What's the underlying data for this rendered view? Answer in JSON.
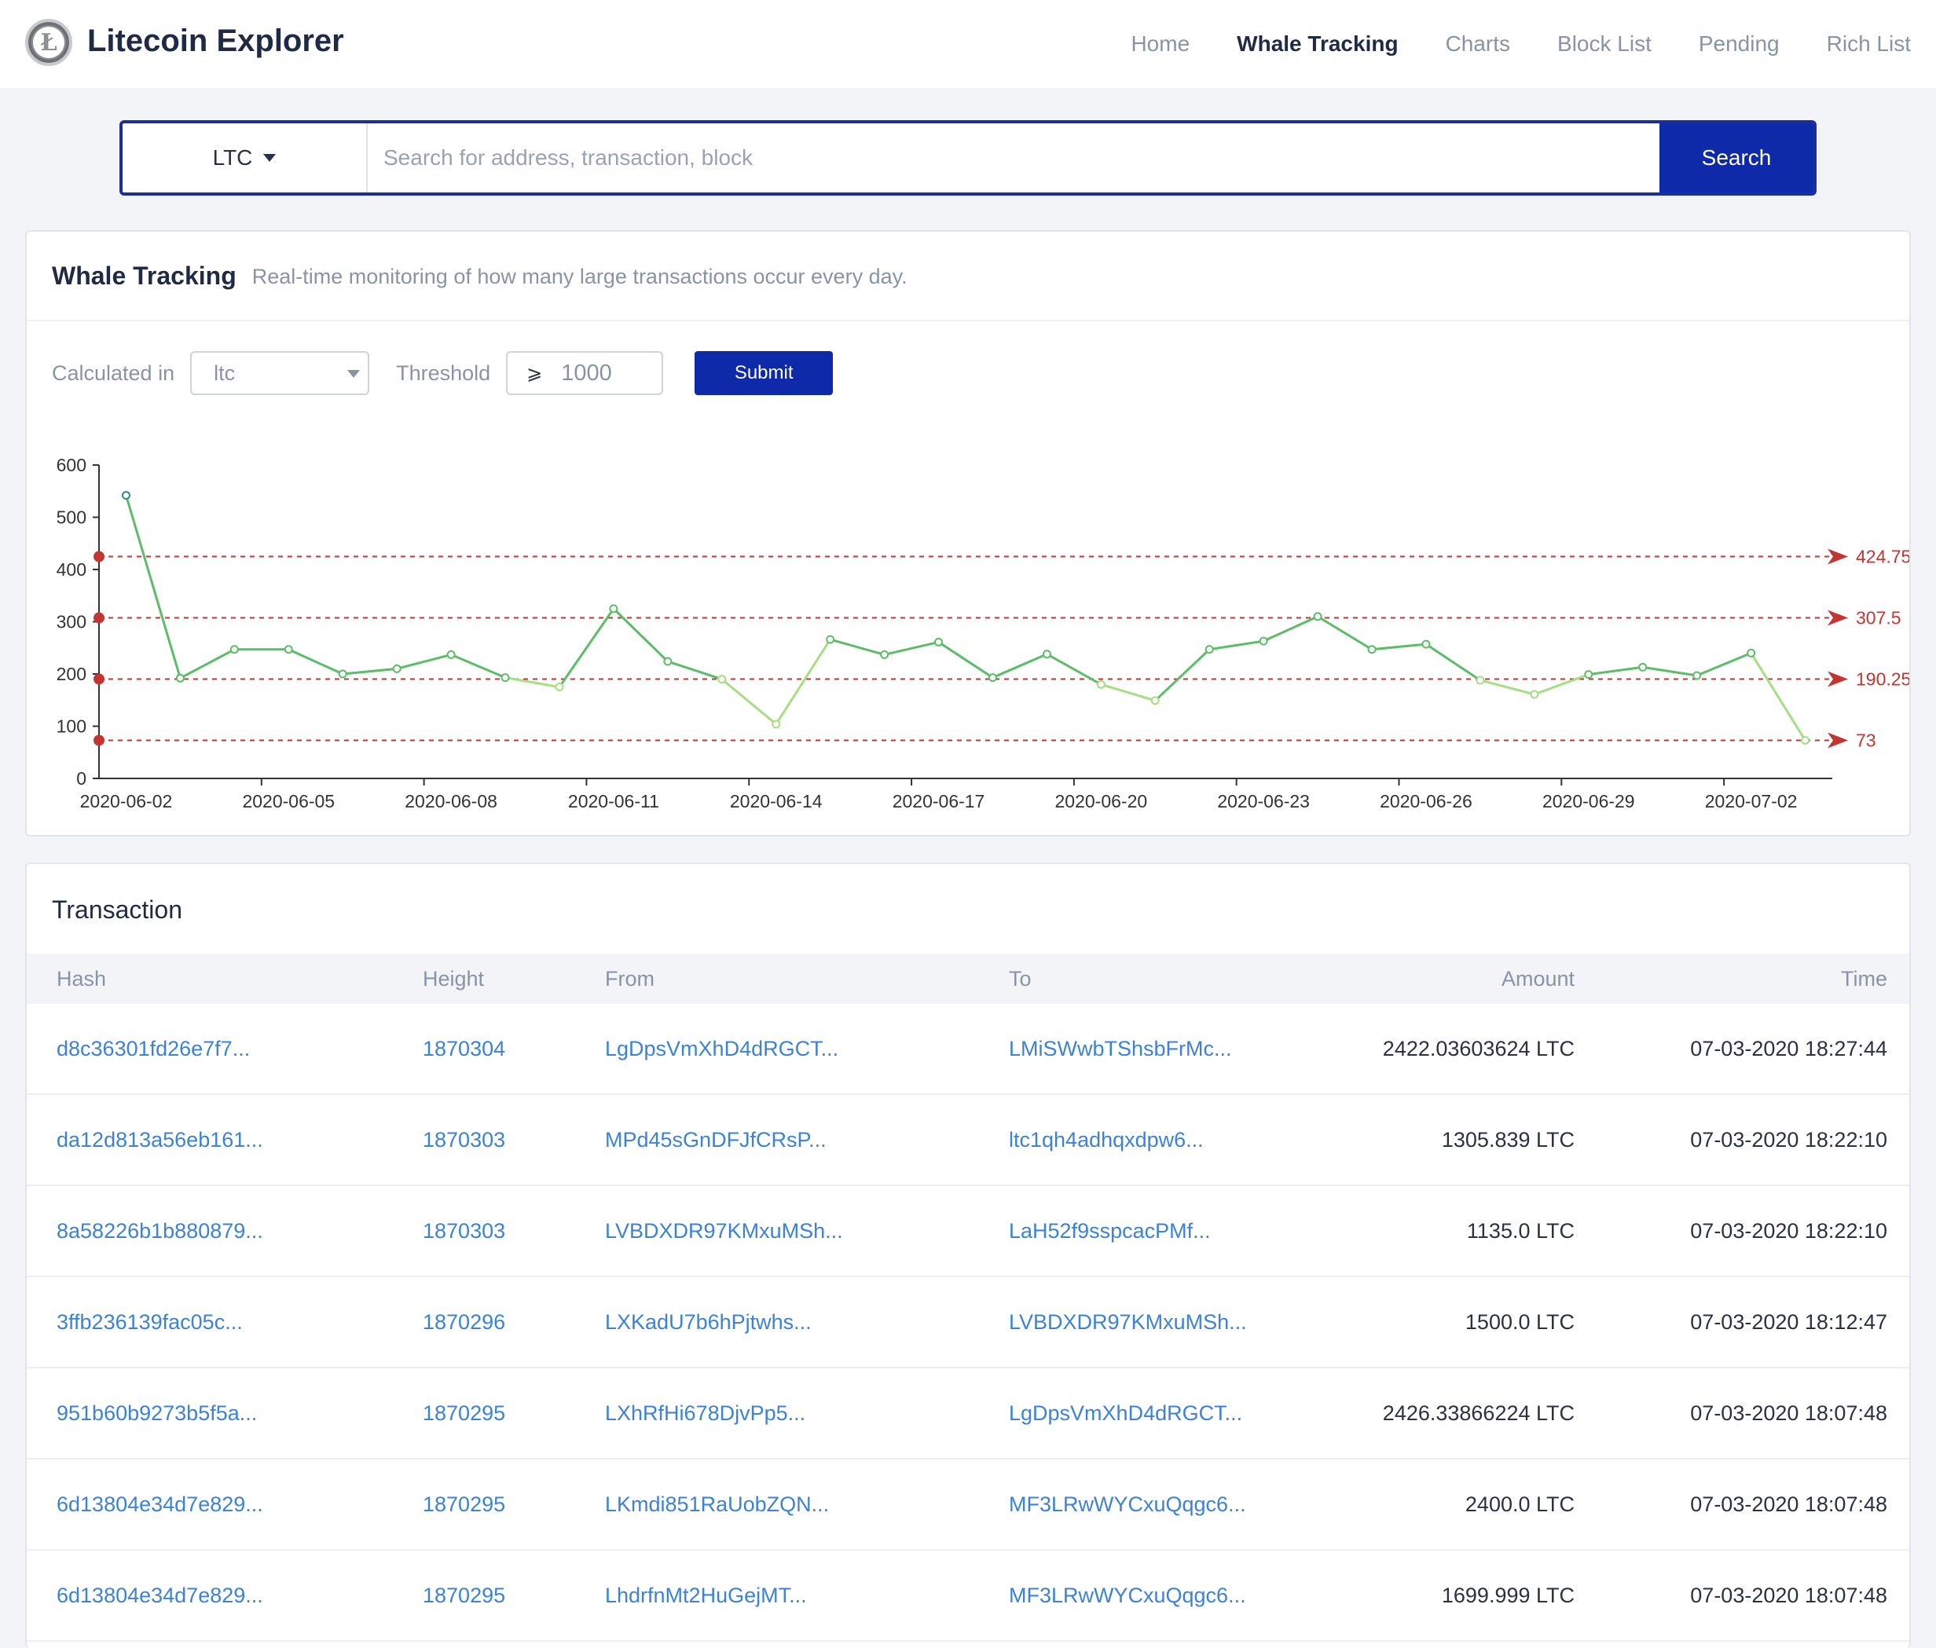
{
  "header": {
    "brand": "Litecoin Explorer",
    "logo_icon": "litecoin-logo",
    "logo_glyph": "Ł",
    "nav": [
      "Home",
      "Whale Tracking",
      "Charts",
      "Block List",
      "Pending",
      "Rich List"
    ],
    "active_nav": "Whale Tracking"
  },
  "search": {
    "currency": "LTC",
    "placeholder": "Search for address, transaction, block",
    "button": "Search"
  },
  "whale": {
    "title": "Whale Tracking",
    "subtitle": "Real-time monitoring of how many large transactions occur every day.",
    "calc_label": "Calculated in",
    "calc_value": "ltc",
    "threshold_label": "Threshold",
    "threshold_symbol": "⩾",
    "threshold_value": "1000",
    "submit": "Submit"
  },
  "chart_data": {
    "type": "line",
    "ylim": [
      0,
      600
    ],
    "yticks": [
      "0",
      "100",
      "200",
      "300",
      "400",
      "500",
      "600"
    ],
    "xtick_labels": [
      "2020-06-02",
      "2020-06-05",
      "2020-06-08",
      "2020-06-11",
      "2020-06-14",
      "2020-06-17",
      "2020-06-20",
      "2020-06-23",
      "2020-06-26",
      "2020-06-29",
      "2020-07-02"
    ],
    "x": [
      "2020-06-02",
      "2020-06-03",
      "2020-06-04",
      "2020-06-05",
      "2020-06-06",
      "2020-06-07",
      "2020-06-08",
      "2020-06-09",
      "2020-06-10",
      "2020-06-11",
      "2020-06-12",
      "2020-06-13",
      "2020-06-14",
      "2020-06-15",
      "2020-06-16",
      "2020-06-17",
      "2020-06-18",
      "2020-06-19",
      "2020-06-20",
      "2020-06-21",
      "2020-06-22",
      "2020-06-23",
      "2020-06-24",
      "2020-06-25",
      "2020-06-26",
      "2020-06-27",
      "2020-06-28",
      "2020-06-29",
      "2020-06-30",
      "2020-07-01",
      "2020-07-02",
      "2020-07-03"
    ],
    "values": [
      542,
      192,
      247,
      247,
      200,
      210,
      237,
      193,
      175,
      325,
      224,
      190,
      104,
      266,
      237,
      261,
      193,
      238,
      180,
      149,
      247,
      263,
      310,
      247,
      257,
      188,
      161,
      199,
      213,
      197,
      240,
      73
    ],
    "mark_lines": [
      {
        "value": 424.75,
        "label": "424.75"
      },
      {
        "value": 307.5,
        "label": "307.5"
      },
      {
        "value": 190.25,
        "label": "190.25"
      },
      {
        "value": 73,
        "label": "73"
      }
    ],
    "colors": {
      "line_high": "#2a8a8c",
      "line_mid": "#5cbc68",
      "line_low": "#a6de84",
      "mark": "#c23531",
      "axis": "#333333"
    }
  },
  "transactions": {
    "title": "Transaction",
    "columns": {
      "hash": "Hash",
      "height": "Height",
      "from": "From",
      "to": "To",
      "amount": "Amount",
      "time": "Time"
    },
    "rows": [
      {
        "hash": "d8c36301fd26e7f7...",
        "height": "1870304",
        "from": "LgDpsVmXhD4dRGCT...",
        "to": "LMiSWwbTShsbFrMc...",
        "amount": "2422.03603624 LTC",
        "time": "07-03-2020 18:27:44"
      },
      {
        "hash": "da12d813a56eb161...",
        "height": "1870303",
        "from": "MPd45sGnDFJfCRsP...",
        "to": "ltc1qh4adhqxdpw6...",
        "amount": "1305.839 LTC",
        "time": "07-03-2020 18:22:10"
      },
      {
        "hash": "8a58226b1b880879...",
        "height": "1870303",
        "from": "LVBDXDR97KMxuMSh...",
        "to": "LaH52f9sspcacPMf...",
        "amount": "1135.0 LTC",
        "time": "07-03-2020 18:22:10"
      },
      {
        "hash": "3ffb236139fac05c...",
        "height": "1870296",
        "from": "LXKadU7b6hPjtwhs...",
        "to": "LVBDXDR97KMxuMSh...",
        "amount": "1500.0 LTC",
        "time": "07-03-2020 18:12:47"
      },
      {
        "hash": "951b60b9273b5f5a...",
        "height": "1870295",
        "from": "LXhRfHi678DjvPp5...",
        "to": "LgDpsVmXhD4dRGCT...",
        "amount": "2426.33866224 LTC",
        "time": "07-03-2020 18:07:48"
      },
      {
        "hash": "6d13804e34d7e829...",
        "height": "1870295",
        "from": "LKmdi851RaUobZQN...",
        "to": "MF3LRwWYCxuQqgc6...",
        "amount": "2400.0 LTC",
        "time": "07-03-2020 18:07:48"
      },
      {
        "hash": "6d13804e34d7e829...",
        "height": "1870295",
        "from": "LhdrfnMt2HuGejMT...",
        "to": "MF3LRwWYCxuQqgc6...",
        "amount": "1699.999 LTC",
        "time": "07-03-2020 18:07:48"
      }
    ]
  }
}
